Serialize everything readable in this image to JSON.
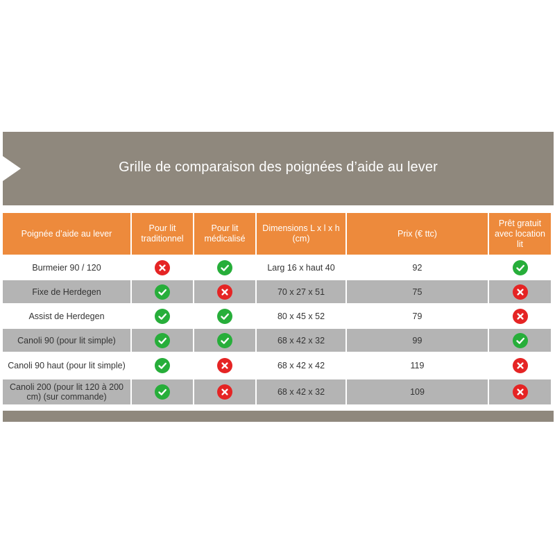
{
  "banner": {
    "title": "Grille de comparaison des poignées d’aide au lever"
  },
  "table": {
    "headers": [
      "Poignée d’aide au lever",
      "Pour lit traditionnel",
      "Pour lit médicalisé",
      "Dimensions L x l x h (cm)",
      "Prix (€ ttc)",
      "Prêt gratuit avec location lit"
    ],
    "rows": [
      {
        "name": "Burmeier 90 / 120",
        "traditionnel": "no",
        "medicalise": "yes",
        "dimensions": "Larg 16 x haut 40",
        "prix": "92",
        "pret": "yes"
      },
      {
        "name": "Fixe de Herdegen",
        "traditionnel": "yes",
        "medicalise": "no",
        "dimensions": "70 x 27 x 51",
        "prix": "75",
        "pret": "no"
      },
      {
        "name": "Assist de Herdegen",
        "traditionnel": "yes",
        "medicalise": "yes",
        "dimensions": "80 x 45 x 52",
        "prix": "79",
        "pret": "no"
      },
      {
        "name": "Canoli 90 (pour lit simple)",
        "traditionnel": "yes",
        "medicalise": "yes",
        "dimensions": "68 x 42 x 32",
        "prix": "99",
        "pret": "yes"
      },
      {
        "name": "Canoli 90 haut (pour lit simple)",
        "traditionnel": "yes",
        "medicalise": "no",
        "dimensions": "68 x 42 x 42",
        "prix": "119",
        "pret": "no"
      },
      {
        "name": "Canoli 200 (pour lit 120 à 200 cm) (sur commande)",
        "traditionnel": "yes",
        "medicalise": "no",
        "dimensions": "68 x 42 x 32",
        "prix": "109",
        "pret": "no"
      }
    ]
  },
  "icons": {
    "yes": "check-circle-icon",
    "no": "cross-circle-icon"
  },
  "colors": {
    "banner": "#8f887d",
    "header": "#ed8a3c",
    "row_alt": "#b4b4b4",
    "yes": "#27ae3a",
    "no": "#e52424"
  }
}
